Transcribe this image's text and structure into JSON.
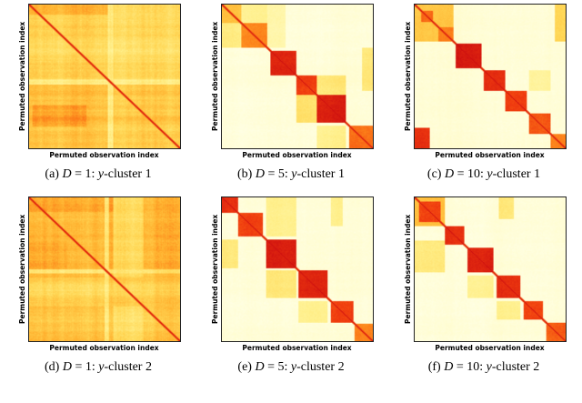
{
  "page": {
    "background": "#ffffff",
    "text_color": "#000000",
    "border_color": "#222222"
  },
  "colormap": [
    {
      "v": 0.0,
      "hex": "#FFFFE4"
    },
    {
      "v": 0.15,
      "hex": "#FFFABE"
    },
    {
      "v": 0.3,
      "hex": "#FFF08C"
    },
    {
      "v": 0.45,
      "hex": "#FFD755"
    },
    {
      "v": 0.6,
      "hex": "#FFAF2D"
    },
    {
      "v": 0.72,
      "hex": "#FC7D19"
    },
    {
      "v": 0.85,
      "hex": "#F03C0F"
    },
    {
      "v": 1.0,
      "hex": "#CD0F0F"
    }
  ],
  "chart_data": [
    {
      "type": "heatmap",
      "caption": {
        "index": "(a)",
        "dvar": "D",
        "deq": "= 1:",
        "yvar": "y",
        "ytail": "-cluster 1"
      },
      "xlabel": "Permuted observation index",
      "ylabel": "Permuted observation index",
      "heatmap": {
        "n": 140,
        "seed": 11,
        "base": 0.48,
        "band": 0.08,
        "cell": 0.06,
        "diagonal": true,
        "rects": [
          {
            "r0": 0.0,
            "r1": 0.54,
            "c0": 0.0,
            "c1": 0.54,
            "v": 0.46
          },
          {
            "r0": 0.54,
            "r1": 1.0,
            "c0": 0.54,
            "c1": 1.0,
            "v": 0.52
          },
          {
            "r0": 0.54,
            "r1": 1.0,
            "c0": 0.0,
            "c1": 0.54,
            "v": 0.55
          },
          {
            "r0": 0.0,
            "r1": 0.54,
            "c0": 0.54,
            "c1": 1.0,
            "v": 0.43
          },
          {
            "r0": 0.7,
            "r1": 0.85,
            "c0": 0.02,
            "c1": 0.38,
            "v": 0.65
          },
          {
            "r0": 0.0,
            "r1": 0.07,
            "c0": 0.0,
            "c1": 0.54,
            "v": 0.58
          },
          {
            "r0": 0.525,
            "r1": 0.555,
            "c0": 0.0,
            "c1": 1.0,
            "v": 0.3
          },
          {
            "r0": 0.0,
            "r1": 1.0,
            "c0": 0.525,
            "c1": 0.555,
            "v": 0.33
          }
        ],
        "blocks": []
      }
    },
    {
      "type": "heatmap",
      "caption": {
        "index": "(b)",
        "dvar": "D",
        "deq": "= 5:",
        "yvar": "y",
        "ytail": "-cluster 1"
      },
      "xlabel": "Permuted observation index",
      "ylabel": "Permuted observation index",
      "heatmap": {
        "n": 140,
        "seed": 22,
        "base": 0.05,
        "band": 0.02,
        "cell": 0.04,
        "diagonal": true,
        "rects": [
          {
            "r0": 0.13,
            "r1": 0.3,
            "c0": 0.0,
            "c1": 0.13,
            "v": 0.35
          },
          {
            "r0": 0.0,
            "r1": 0.13,
            "c0": 0.13,
            "c1": 0.3,
            "v": 0.3
          },
          {
            "r0": 0.63,
            "r1": 0.82,
            "c0": 0.49,
            "c1": 0.63,
            "v": 0.4
          },
          {
            "r0": 0.49,
            "r1": 0.63,
            "c0": 0.63,
            "c1": 0.82,
            "v": 0.35
          },
          {
            "r0": 0.84,
            "r1": 1.0,
            "c0": 0.63,
            "c1": 0.82,
            "v": 0.3
          },
          {
            "r0": 0.3,
            "r1": 0.6,
            "c0": 0.93,
            "c1": 1.0,
            "v": 0.35
          },
          {
            "r0": 0.0,
            "r1": 0.3,
            "c0": 0.3,
            "c1": 0.42,
            "v": 0.22
          }
        ],
        "blocks": [
          {
            "s": 0.0,
            "e": 0.13,
            "v": 0.55
          },
          {
            "s": 0.13,
            "e": 0.3,
            "v": 0.72
          },
          {
            "s": 0.32,
            "e": 0.49,
            "v": 0.93
          },
          {
            "s": 0.49,
            "e": 0.63,
            "v": 0.85
          },
          {
            "s": 0.63,
            "e": 0.82,
            "v": 0.95
          },
          {
            "s": 0.84,
            "e": 1.0,
            "v": 0.75
          }
        ]
      }
    },
    {
      "type": "heatmap",
      "caption": {
        "index": "(c)",
        "dvar": "D",
        "deq": "= 10:",
        "yvar": "y",
        "ytail": "-cluster 1"
      },
      "xlabel": "Permuted observation index",
      "ylabel": "Permuted observation index",
      "heatmap": {
        "n": 140,
        "seed": 33,
        "base": 0.05,
        "band": 0.02,
        "cell": 0.04,
        "diagonal": true,
        "rects": [
          {
            "r0": 0.0,
            "r1": 0.26,
            "c0": 0.0,
            "c1": 0.26,
            "v": 0.5
          },
          {
            "r0": 0.04,
            "r1": 0.12,
            "c0": 0.04,
            "c1": 0.12,
            "v": 0.75
          },
          {
            "r0": 0.16,
            "r1": 0.26,
            "c0": 0.16,
            "c1": 0.26,
            "v": 0.7
          },
          {
            "r0": 0.0,
            "r1": 0.26,
            "c0": 0.93,
            "c1": 1.0,
            "v": 0.45
          },
          {
            "r0": 0.86,
            "r1": 1.0,
            "c0": 0.0,
            "c1": 0.1,
            "v": 0.88
          },
          {
            "r0": 0.46,
            "r1": 0.6,
            "c0": 0.76,
            "c1": 0.9,
            "v": 0.25
          }
        ],
        "blocks": [
          {
            "s": 0.27,
            "e": 0.44,
            "v": 0.95
          },
          {
            "s": 0.46,
            "e": 0.6,
            "v": 0.9
          },
          {
            "s": 0.6,
            "e": 0.74,
            "v": 0.85
          },
          {
            "s": 0.76,
            "e": 0.9,
            "v": 0.8
          },
          {
            "s": 0.9,
            "e": 1.0,
            "v": 0.7
          }
        ]
      }
    },
    {
      "type": "heatmap",
      "caption": {
        "index": "(d)",
        "dvar": "D",
        "deq": "= 1:",
        "yvar": "y",
        "ytail": "-cluster 2"
      },
      "xlabel": "Permuted observation index",
      "ylabel": "Permuted observation index",
      "heatmap": {
        "n": 140,
        "seed": 44,
        "base": 0.55,
        "band": 0.08,
        "cell": 0.06,
        "diagonal": true,
        "rects": [
          {
            "r0": 0.0,
            "r1": 0.5,
            "c0": 0.0,
            "c1": 0.5,
            "v": 0.56
          },
          {
            "r0": 0.5,
            "r1": 1.0,
            "c0": 0.5,
            "c1": 1.0,
            "v": 0.5
          },
          {
            "r0": 0.0,
            "r1": 1.0,
            "c0": 0.56,
            "c1": 0.76,
            "v": 0.42
          },
          {
            "r0": 0.56,
            "r1": 0.76,
            "c0": 0.0,
            "c1": 1.0,
            "v": 0.47
          },
          {
            "r0": 0.0,
            "r1": 0.1,
            "c0": 0.0,
            "c1": 0.56,
            "v": 0.62
          },
          {
            "r0": 0.3,
            "r1": 0.5,
            "c0": 0.0,
            "c1": 0.25,
            "v": 0.6
          },
          {
            "r0": 0.5,
            "r1": 0.53,
            "c0": 0.0,
            "c1": 1.0,
            "v": 0.35
          },
          {
            "r0": 0.0,
            "r1": 1.0,
            "c0": 0.5,
            "c1": 0.53,
            "v": 0.35
          }
        ],
        "blocks": []
      }
    },
    {
      "type": "heatmap",
      "caption": {
        "index": "(e)",
        "dvar": "D",
        "deq": "= 5:",
        "yvar": "y",
        "ytail": "-cluster 2"
      },
      "xlabel": "Permuted observation index",
      "ylabel": "Permuted observation index",
      "heatmap": {
        "n": 140,
        "seed": 55,
        "base": 0.05,
        "band": 0.02,
        "cell": 0.04,
        "diagonal": true,
        "rects": [
          {
            "r0": 0.0,
            "r1": 0.27,
            "c0": 0.29,
            "c1": 0.49,
            "v": 0.3
          },
          {
            "r0": 0.51,
            "r1": 0.7,
            "c0": 0.29,
            "c1": 0.49,
            "v": 0.35
          },
          {
            "r0": 0.72,
            "r1": 0.87,
            "c0": 0.51,
            "c1": 0.7,
            "v": 0.3
          },
          {
            "r0": 0.0,
            "r1": 0.2,
            "c0": 0.72,
            "c1": 0.8,
            "v": 0.3
          },
          {
            "r0": 0.29,
            "r1": 0.49,
            "c0": 0.0,
            "c1": 0.11,
            "v": 0.35
          }
        ],
        "blocks": [
          {
            "s": 0.0,
            "e": 0.11,
            "v": 0.9
          },
          {
            "s": 0.11,
            "e": 0.27,
            "v": 0.85
          },
          {
            "s": 0.29,
            "e": 0.49,
            "v": 0.95
          },
          {
            "s": 0.51,
            "e": 0.7,
            "v": 0.92
          },
          {
            "s": 0.72,
            "e": 0.87,
            "v": 0.85
          },
          {
            "s": 0.88,
            "e": 1.0,
            "v": 0.7
          }
        ]
      }
    },
    {
      "type": "heatmap",
      "caption": {
        "index": "(f)",
        "dvar": "D",
        "deq": "= 10:",
        "yvar": "y",
        "ytail": "-cluster 2"
      },
      "xlabel": "Permuted observation index",
      "ylabel": "Permuted observation index",
      "heatmap": {
        "n": 140,
        "seed": 66,
        "base": 0.05,
        "band": 0.02,
        "cell": 0.04,
        "diagonal": true,
        "rects": [
          {
            "r0": 0.0,
            "r1": 0.2,
            "c0": 0.0,
            "c1": 0.2,
            "v": 0.55
          },
          {
            "r0": 0.3,
            "r1": 0.52,
            "c0": 0.0,
            "c1": 0.2,
            "v": 0.35
          },
          {
            "r0": 0.54,
            "r1": 0.7,
            "c0": 0.35,
            "c1": 0.52,
            "v": 0.3
          },
          {
            "r0": 0.0,
            "r1": 0.15,
            "c0": 0.56,
            "c1": 0.66,
            "v": 0.35
          },
          {
            "r0": 0.72,
            "r1": 0.85,
            "c0": 0.54,
            "c1": 0.7,
            "v": 0.3
          }
        ],
        "blocks": [
          {
            "s": 0.03,
            "e": 0.17,
            "v": 0.85
          },
          {
            "s": 0.2,
            "e": 0.33,
            "v": 0.9
          },
          {
            "s": 0.35,
            "e": 0.52,
            "v": 0.95
          },
          {
            "s": 0.54,
            "e": 0.7,
            "v": 0.9
          },
          {
            "s": 0.72,
            "e": 0.85,
            "v": 0.85
          },
          {
            "s": 0.87,
            "e": 1.0,
            "v": 0.78
          }
        ]
      }
    }
  ]
}
